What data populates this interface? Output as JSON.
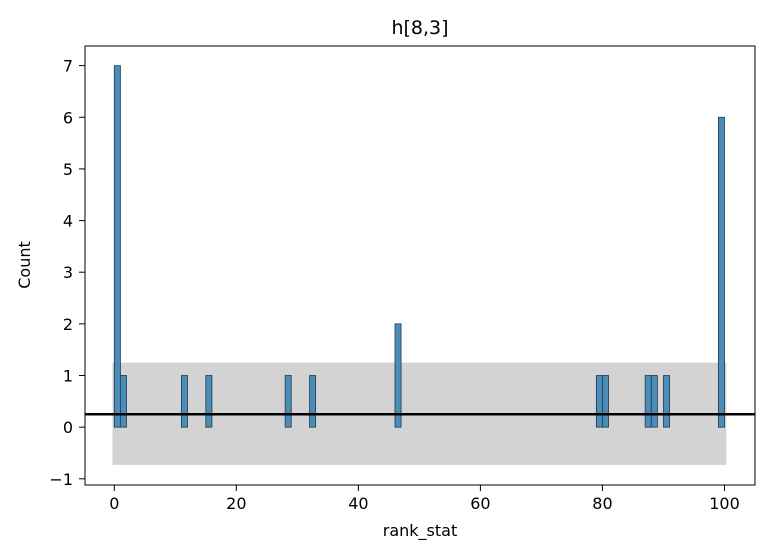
{
  "chart_data": {
    "type": "bar",
    "title": "h[8,3]",
    "xlabel": "rank_stat",
    "ylabel": "Count",
    "xlim": [
      -4.8,
      105
    ],
    "ylim": [
      -1.12,
      7.38
    ],
    "x_ticks": [
      0,
      20,
      40,
      60,
      80,
      100
    ],
    "y_ticks": [
      -1,
      0,
      1,
      2,
      3,
      4,
      5,
      6,
      7
    ],
    "x_tick_labels": [
      "0",
      "20",
      "40",
      "60",
      "80",
      "100"
    ],
    "y_tick_labels": [
      "−1",
      "0",
      "1",
      "2",
      "3",
      "4",
      "5",
      "6",
      "7"
    ],
    "bin_width": 1,
    "bins": [
      {
        "x": 0,
        "count": 7
      },
      {
        "x": 1,
        "count": 1
      },
      {
        "x": 11,
        "count": 1
      },
      {
        "x": 15,
        "count": 1
      },
      {
        "x": 28,
        "count": 1
      },
      {
        "x": 32,
        "count": 1
      },
      {
        "x": 46,
        "count": 2
      },
      {
        "x": 79,
        "count": 1
      },
      {
        "x": 80,
        "count": 1
      },
      {
        "x": 87,
        "count": 1
      },
      {
        "x": 88,
        "count": 1
      },
      {
        "x": 90,
        "count": 1
      },
      {
        "x": 99,
        "count": 6
      }
    ],
    "reference_line": {
      "y": 0.25
    },
    "band": {
      "x0": -0.3,
      "x1": 100.3,
      "y0": -0.73,
      "y1": 1.25
    },
    "colors": {
      "bar_fill": "#4c8db8",
      "bar_edge": "#1f3a4f",
      "band": "#d3d3d3",
      "reference_line": "#000000"
    },
    "grid": false
  }
}
